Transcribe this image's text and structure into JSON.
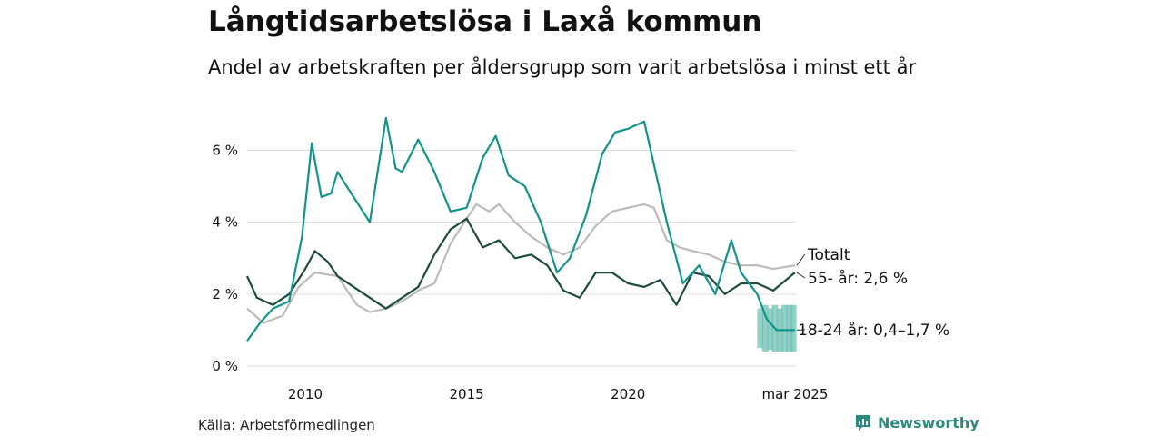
{
  "header": {
    "title": "Långtidsarbetslösa i Laxå kommun",
    "subtitle": "Andel av arbetskraften per åldersgrupp som varit arbetslösa i minst ett år"
  },
  "footer": {
    "source": "Källa: Arbetsförmedlingen",
    "brand": "Newsworthy"
  },
  "colors": {
    "youth": "#12948a",
    "senior": "#1f4a40",
    "total": "#bbbbbb",
    "band": "#6fc1b4",
    "grid": "#dddddd"
  },
  "chart_data": {
    "type": "line",
    "title": "Långtidsarbetslösa i Laxå kommun",
    "subtitle": "Andel av arbetskraften per åldersgrupp som varit arbetslösa i minst ett år",
    "x_unit": "year",
    "xlim": [
      2008.2,
      2025.2
    ],
    "ylim": [
      0,
      7.2
    ],
    "y_ticks": [
      {
        "value": 0,
        "label": "0 %"
      },
      {
        "value": 2,
        "label": "2 %"
      },
      {
        "value": 4,
        "label": "4 %"
      },
      {
        "value": 6,
        "label": "6 %"
      }
    ],
    "x_ticks": [
      {
        "value": 2010,
        "label": "2010"
      },
      {
        "value": 2015,
        "label": "2015"
      },
      {
        "value": 2020,
        "label": "2020"
      },
      {
        "value": 2025.17,
        "label": "mar 2025"
      }
    ],
    "grid": "horizontal",
    "series": [
      {
        "name": "Totalt",
        "key": "total",
        "end_label": "Totalt",
        "points": [
          [
            2008.2,
            1.6
          ],
          [
            2008.7,
            1.2
          ],
          [
            2009.3,
            1.4
          ],
          [
            2009.8,
            2.2
          ],
          [
            2010.3,
            2.6
          ],
          [
            2011.0,
            2.5
          ],
          [
            2011.6,
            1.7
          ],
          [
            2012.0,
            1.5
          ],
          [
            2012.5,
            1.6
          ],
          [
            2013.0,
            1.8
          ],
          [
            2013.5,
            2.1
          ],
          [
            2014.0,
            2.3
          ],
          [
            2014.5,
            3.4
          ],
          [
            2015.0,
            4.1
          ],
          [
            2015.3,
            4.5
          ],
          [
            2015.7,
            4.3
          ],
          [
            2016.0,
            4.5
          ],
          [
            2016.5,
            4.0
          ],
          [
            2017.0,
            3.6
          ],
          [
            2017.5,
            3.3
          ],
          [
            2018.0,
            3.1
          ],
          [
            2018.5,
            3.3
          ],
          [
            2019.0,
            3.9
          ],
          [
            2019.5,
            4.3
          ],
          [
            2020.0,
            4.4
          ],
          [
            2020.5,
            4.5
          ],
          [
            2020.8,
            4.4
          ],
          [
            2021.2,
            3.5
          ],
          [
            2021.6,
            3.3
          ],
          [
            2022.0,
            3.2
          ],
          [
            2022.5,
            3.1
          ],
          [
            2023.0,
            2.9
          ],
          [
            2023.5,
            2.8
          ],
          [
            2024.0,
            2.8
          ],
          [
            2024.5,
            2.7
          ],
          [
            2025.17,
            2.8
          ]
        ]
      },
      {
        "name": "55- år",
        "key": "senior",
        "end_label": "55- år: 2,6 %",
        "points": [
          [
            2008.2,
            2.5
          ],
          [
            2008.5,
            1.9
          ],
          [
            2009.0,
            1.7
          ],
          [
            2009.5,
            2.0
          ],
          [
            2010.0,
            2.7
          ],
          [
            2010.3,
            3.2
          ],
          [
            2010.7,
            2.9
          ],
          [
            2011.0,
            2.5
          ],
          [
            2011.5,
            2.2
          ],
          [
            2012.0,
            1.9
          ],
          [
            2012.5,
            1.6
          ],
          [
            2013.0,
            1.9
          ],
          [
            2013.5,
            2.2
          ],
          [
            2014.0,
            3.1
          ],
          [
            2014.5,
            3.8
          ],
          [
            2015.0,
            4.1
          ],
          [
            2015.5,
            3.3
          ],
          [
            2016.0,
            3.5
          ],
          [
            2016.5,
            3.0
          ],
          [
            2017.0,
            3.1
          ],
          [
            2017.5,
            2.8
          ],
          [
            2018.0,
            2.1
          ],
          [
            2018.5,
            1.9
          ],
          [
            2019.0,
            2.6
          ],
          [
            2019.5,
            2.6
          ],
          [
            2020.0,
            2.3
          ],
          [
            2020.5,
            2.2
          ],
          [
            2021.0,
            2.4
          ],
          [
            2021.5,
            1.7
          ],
          [
            2022.0,
            2.6
          ],
          [
            2022.5,
            2.5
          ],
          [
            2023.0,
            2.0
          ],
          [
            2023.5,
            2.3
          ],
          [
            2024.0,
            2.3
          ],
          [
            2024.5,
            2.1
          ],
          [
            2025.17,
            2.6
          ]
        ]
      },
      {
        "name": "18-24 år",
        "key": "youth",
        "end_label": "18-24 år: 0,4–1,7 %",
        "points": [
          [
            2008.2,
            0.7
          ],
          [
            2008.6,
            1.2
          ],
          [
            2009.0,
            1.6
          ],
          [
            2009.5,
            1.8
          ],
          [
            2009.9,
            3.6
          ],
          [
            2010.2,
            6.2
          ],
          [
            2010.5,
            4.7
          ],
          [
            2010.8,
            4.8
          ],
          [
            2011.0,
            5.4
          ],
          [
            2011.5,
            4.7
          ],
          [
            2012.0,
            4.0
          ],
          [
            2012.5,
            6.9
          ],
          [
            2012.8,
            5.5
          ],
          [
            2013.0,
            5.4
          ],
          [
            2013.5,
            6.3
          ],
          [
            2014.0,
            5.4
          ],
          [
            2014.5,
            4.3
          ],
          [
            2015.0,
            4.4
          ],
          [
            2015.5,
            5.8
          ],
          [
            2015.9,
            6.4
          ],
          [
            2016.3,
            5.3
          ],
          [
            2016.8,
            5.0
          ],
          [
            2017.3,
            4.0
          ],
          [
            2017.8,
            2.6
          ],
          [
            2018.2,
            3.0
          ],
          [
            2018.7,
            4.2
          ],
          [
            2019.2,
            5.9
          ],
          [
            2019.6,
            6.5
          ],
          [
            2020.0,
            6.6
          ],
          [
            2020.5,
            6.8
          ],
          [
            2020.8,
            5.6
          ],
          [
            2021.2,
            4.0
          ],
          [
            2021.7,
            2.3
          ],
          [
            2022.2,
            2.8
          ],
          [
            2022.7,
            2.0
          ],
          [
            2023.2,
            3.5
          ],
          [
            2023.5,
            2.6
          ],
          [
            2024.0,
            2.0
          ],
          [
            2024.3,
            1.3
          ],
          [
            2024.6,
            1.0
          ],
          [
            2025.17,
            1.0
          ]
        ]
      }
    ],
    "uncertainty_band": {
      "series": "18-24 år",
      "low": 0.4,
      "high": 1.7,
      "bars": [
        [
          2024.1,
          0.5,
          1.6
        ],
        [
          2024.25,
          0.4,
          1.7
        ],
        [
          2024.4,
          0.45,
          1.6
        ],
        [
          2024.55,
          0.4,
          1.7
        ],
        [
          2024.7,
          0.4,
          1.6
        ],
        [
          2024.85,
          0.4,
          1.7
        ],
        [
          2025.0,
          0.4,
          1.7
        ],
        [
          2025.12,
          0.4,
          1.7
        ]
      ]
    }
  }
}
